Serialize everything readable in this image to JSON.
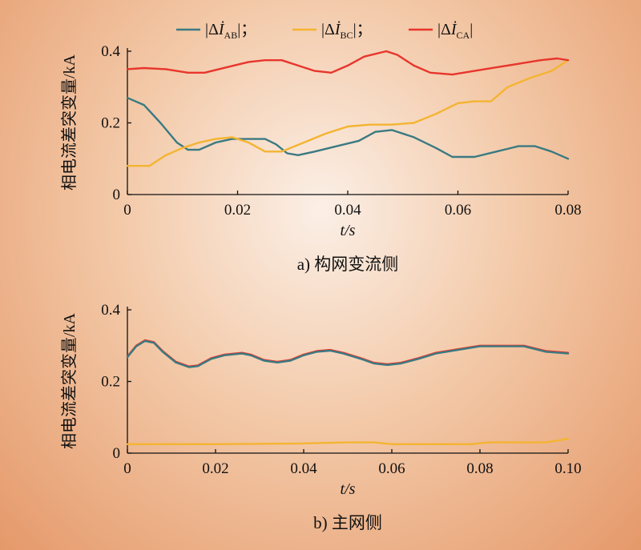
{
  "legend": [
    {
      "prefix": "|Δ",
      "sym": "İ",
      "sub": "AB",
      "suffix": "|；",
      "color": "#3a7a82"
    },
    {
      "prefix": "|Δ",
      "sym": "İ",
      "sub": "BC",
      "suffix": "|；",
      "color": "#f4b431"
    },
    {
      "prefix": "|Δ",
      "sym": "İ",
      "sub": "CA",
      "suffix": "|",
      "color": "#e8352c"
    }
  ],
  "chart_data": [
    {
      "type": "line",
      "caption": "a) 构网变流侧",
      "ylabel": "相电流差突变量/kA",
      "xlabel": "t/s",
      "xlim": [
        0,
        0.08
      ],
      "ylim": [
        0,
        0.4
      ],
      "xticks": [
        "0",
        "0.02",
        "0.04",
        "0.06",
        "0.08"
      ],
      "yticks": [
        "0",
        "0.2",
        "0.4"
      ],
      "series": [
        {
          "key": "AB",
          "color": "#3a7a82",
          "points": [
            [
              0,
              0.27
            ],
            [
              0.003,
              0.25
            ],
            [
              0.006,
              0.2
            ],
            [
              0.009,
              0.145
            ],
            [
              0.011,
              0.125
            ],
            [
              0.013,
              0.125
            ],
            [
              0.016,
              0.145
            ],
            [
              0.019,
              0.155
            ],
            [
              0.022,
              0.155
            ],
            [
              0.025,
              0.155
            ],
            [
              0.027,
              0.14
            ],
            [
              0.029,
              0.115
            ],
            [
              0.031,
              0.11
            ],
            [
              0.034,
              0.12
            ],
            [
              0.038,
              0.135
            ],
            [
              0.042,
              0.15
            ],
            [
              0.045,
              0.175
            ],
            [
              0.048,
              0.18
            ],
            [
              0.052,
              0.16
            ],
            [
              0.056,
              0.13
            ],
            [
              0.059,
              0.105
            ],
            [
              0.063,
              0.105
            ],
            [
              0.067,
              0.12
            ],
            [
              0.071,
              0.135
            ],
            [
              0.074,
              0.135
            ],
            [
              0.077,
              0.12
            ],
            [
              0.08,
              0.1
            ]
          ]
        },
        {
          "key": "BC",
          "color": "#f4b431",
          "points": [
            [
              0,
              0.08
            ],
            [
              0.004,
              0.08
            ],
            [
              0.007,
              0.11
            ],
            [
              0.01,
              0.13
            ],
            [
              0.013,
              0.145
            ],
            [
              0.016,
              0.155
            ],
            [
              0.019,
              0.16
            ],
            [
              0.022,
              0.145
            ],
            [
              0.025,
              0.12
            ],
            [
              0.028,
              0.12
            ],
            [
              0.032,
              0.145
            ],
            [
              0.036,
              0.17
            ],
            [
              0.04,
              0.19
            ],
            [
              0.044,
              0.195
            ],
            [
              0.048,
              0.195
            ],
            [
              0.052,
              0.2
            ],
            [
              0.056,
              0.225
            ],
            [
              0.06,
              0.255
            ],
            [
              0.063,
              0.26
            ],
            [
              0.066,
              0.26
            ],
            [
              0.069,
              0.3
            ],
            [
              0.073,
              0.325
            ],
            [
              0.077,
              0.345
            ],
            [
              0.08,
              0.375
            ]
          ]
        },
        {
          "key": "CA",
          "color": "#e8352c",
          "points": [
            [
              0,
              0.35
            ],
            [
              0.003,
              0.353
            ],
            [
              0.007,
              0.35
            ],
            [
              0.011,
              0.34
            ],
            [
              0.014,
              0.34
            ],
            [
              0.018,
              0.355
            ],
            [
              0.022,
              0.37
            ],
            [
              0.025,
              0.375
            ],
            [
              0.028,
              0.375
            ],
            [
              0.031,
              0.36
            ],
            [
              0.034,
              0.345
            ],
            [
              0.037,
              0.34
            ],
            [
              0.04,
              0.36
            ],
            [
              0.043,
              0.385
            ],
            [
              0.047,
              0.4
            ],
            [
              0.049,
              0.39
            ],
            [
              0.052,
              0.36
            ],
            [
              0.055,
              0.34
            ],
            [
              0.059,
              0.335
            ],
            [
              0.063,
              0.345
            ],
            [
              0.067,
              0.355
            ],
            [
              0.071,
              0.365
            ],
            [
              0.075,
              0.375
            ],
            [
              0.078,
              0.38
            ],
            [
              0.08,
              0.375
            ]
          ]
        }
      ]
    },
    {
      "type": "line",
      "caption": "b) 主网侧",
      "ylabel": "相电流差突变量/kA",
      "xlabel": "t/s",
      "xlim": [
        0,
        0.1
      ],
      "ylim": [
        0,
        0.4
      ],
      "xticks": [
        "0",
        "0.02",
        "0.04",
        "0.06",
        "0.08",
        "0.10"
      ],
      "yticks": [
        "0",
        "0.2",
        "0.4"
      ],
      "series": [
        {
          "key": "BC",
          "color": "#f4b431",
          "points": [
            [
              0,
              0.025
            ],
            [
              0.02,
              0.025
            ],
            [
              0.04,
              0.027
            ],
            [
              0.05,
              0.03
            ],
            [
              0.056,
              0.03
            ],
            [
              0.06,
              0.025
            ],
            [
              0.07,
              0.025
            ],
            [
              0.078,
              0.025
            ],
            [
              0.082,
              0.03
            ],
            [
              0.095,
              0.03
            ],
            [
              0.1,
              0.04
            ]
          ]
        },
        {
          "key": "CA",
          "color": "#e8352c",
          "points": [
            [
              0,
              0.27
            ],
            [
              0.002,
              0.3
            ],
            [
              0.004,
              0.315
            ],
            [
              0.006,
              0.31
            ],
            [
              0.008,
              0.285
            ],
            [
              0.011,
              0.255
            ],
            [
              0.014,
              0.242
            ],
            [
              0.016,
              0.245
            ],
            [
              0.019,
              0.265
            ],
            [
              0.022,
              0.275
            ],
            [
              0.026,
              0.28
            ],
            [
              0.028,
              0.275
            ],
            [
              0.031,
              0.26
            ],
            [
              0.034,
              0.255
            ],
            [
              0.037,
              0.26
            ],
            [
              0.04,
              0.275
            ],
            [
              0.043,
              0.285
            ],
            [
              0.046,
              0.288
            ],
            [
              0.049,
              0.28
            ],
            [
              0.053,
              0.265
            ],
            [
              0.056,
              0.252
            ],
            [
              0.059,
              0.248
            ],
            [
              0.062,
              0.252
            ],
            [
              0.066,
              0.265
            ],
            [
              0.07,
              0.28
            ],
            [
              0.075,
              0.29
            ],
            [
              0.08,
              0.3
            ],
            [
              0.09,
              0.3
            ],
            [
              0.095,
              0.285
            ],
            [
              0.1,
              0.28
            ]
          ]
        },
        {
          "key": "AB",
          "color": "#3a7a82",
          "points": [
            [
              0,
              0.268
            ],
            [
              0.002,
              0.298
            ],
            [
              0.004,
              0.313
            ],
            [
              0.006,
              0.308
            ],
            [
              0.008,
              0.283
            ],
            [
              0.011,
              0.253
            ],
            [
              0.014,
              0.24
            ],
            [
              0.016,
              0.243
            ],
            [
              0.019,
              0.263
            ],
            [
              0.022,
              0.273
            ],
            [
              0.026,
              0.278
            ],
            [
              0.028,
              0.273
            ],
            [
              0.031,
              0.258
            ],
            [
              0.034,
              0.253
            ],
            [
              0.037,
              0.258
            ],
            [
              0.04,
              0.273
            ],
            [
              0.043,
              0.283
            ],
            [
              0.046,
              0.286
            ],
            [
              0.049,
              0.278
            ],
            [
              0.053,
              0.263
            ],
            [
              0.056,
              0.25
            ],
            [
              0.059,
              0.246
            ],
            [
              0.062,
              0.25
            ],
            [
              0.066,
              0.263
            ],
            [
              0.07,
              0.278
            ],
            [
              0.075,
              0.288
            ],
            [
              0.08,
              0.298
            ],
            [
              0.09,
              0.298
            ],
            [
              0.095,
              0.283
            ],
            [
              0.1,
              0.278
            ]
          ]
        }
      ]
    }
  ]
}
